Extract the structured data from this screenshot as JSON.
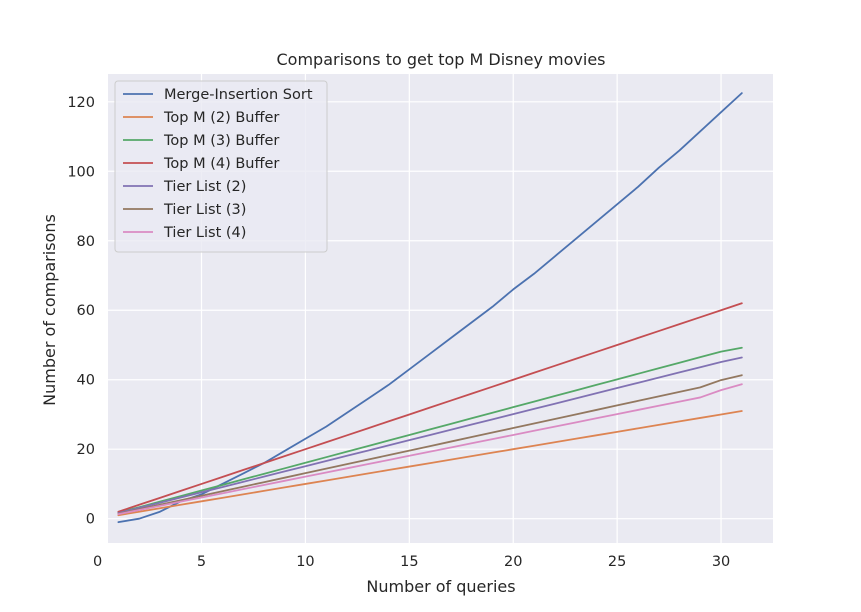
{
  "chart_data": {
    "type": "line",
    "title": "Comparisons to get top M Disney movies",
    "xlabel": "Number of queries",
    "ylabel": "Number of comparisons",
    "xlim": [
      0.5,
      32.5
    ],
    "ylim": [
      -7,
      128
    ],
    "xticks": [
      0,
      5,
      10,
      15,
      20,
      25,
      30
    ],
    "yticks": [
      0,
      20,
      40,
      60,
      80,
      100,
      120
    ],
    "grid": true,
    "legend_position": "top-left",
    "x": [
      1,
      2,
      3,
      4,
      5,
      6,
      7,
      8,
      9,
      10,
      11,
      12,
      13,
      14,
      15,
      16,
      17,
      18,
      19,
      20,
      21,
      22,
      23,
      24,
      25,
      26,
      27,
      28,
      29,
      30,
      31
    ],
    "series": [
      {
        "name": "Merge-Insertion Sort",
        "color": "#4c72b0",
        "values": [
          -1,
          0,
          2,
          5,
          7,
          10,
          13,
          16,
          19.5,
          23,
          26.5,
          30.5,
          34.5,
          38.5,
          43,
          47.5,
          52,
          56.5,
          61,
          66,
          70.5,
          75.5,
          80.5,
          85.5,
          90.5,
          95.5,
          101,
          106,
          111.5,
          117,
          122.5
        ]
      },
      {
        "name": "Top M (2) Buffer",
        "color": "#dd8452",
        "values": [
          1,
          2,
          3,
          4,
          5,
          6,
          7,
          8,
          9,
          10,
          11,
          12,
          13,
          14,
          15,
          16,
          17,
          18,
          19,
          20,
          21,
          22,
          23,
          24,
          25,
          26,
          27,
          28,
          29,
          30,
          31
        ]
      },
      {
        "name": "Top M (3) Buffer",
        "color": "#55a868",
        "values": [
          1.8,
          3.3,
          4.9,
          6.5,
          8.1,
          9.7,
          11.3,
          12.9,
          14.5,
          16.1,
          17.7,
          19.3,
          20.9,
          22.5,
          24.1,
          25.7,
          27.3,
          28.9,
          30.5,
          32.1,
          33.7,
          35.3,
          36.9,
          38.5,
          40.1,
          41.7,
          43.3,
          44.9,
          46.5,
          48.1,
          49.2
        ]
      },
      {
        "name": "Top M (4) Buffer",
        "color": "#c44e52",
        "values": [
          2,
          4,
          6,
          8,
          10,
          12,
          14,
          16,
          18,
          20,
          22,
          24,
          26,
          28,
          30,
          32,
          34,
          36,
          38,
          40,
          42,
          44,
          46,
          48,
          50,
          52,
          54,
          56,
          58,
          60,
          62
        ]
      },
      {
        "name": "Tier List (2)",
        "color": "#8172b3",
        "values": [
          1.6,
          3.1,
          4.6,
          6.1,
          7.6,
          9.1,
          10.6,
          12.1,
          13.6,
          15.1,
          16.6,
          18.1,
          19.6,
          21.1,
          22.6,
          24.1,
          25.6,
          27.1,
          28.6,
          30.1,
          31.6,
          33.1,
          34.6,
          36.1,
          37.6,
          39.1,
          40.6,
          42.1,
          43.6,
          45.1,
          46.4
        ]
      },
      {
        "name": "Tier List (3)",
        "color": "#937860",
        "values": [
          1.4,
          2.7,
          4.0,
          5.3,
          6.6,
          7.9,
          9.2,
          10.5,
          11.8,
          13.1,
          14.4,
          15.7,
          17.0,
          18.3,
          19.6,
          20.9,
          22.2,
          23.5,
          24.8,
          26.1,
          27.4,
          28.7,
          30.0,
          31.3,
          32.6,
          33.9,
          35.2,
          36.5,
          37.8,
          39.9,
          41.3
        ]
      },
      {
        "name": "Tier List (4)",
        "color": "#da8bc3",
        "values": [
          1.3,
          2.5,
          3.7,
          4.9,
          6.1,
          7.3,
          8.5,
          9.7,
          10.9,
          12.1,
          13.3,
          14.5,
          15.7,
          16.9,
          18.1,
          19.3,
          20.5,
          21.7,
          22.9,
          24.1,
          25.3,
          26.5,
          27.7,
          28.9,
          30.1,
          31.3,
          32.5,
          33.7,
          34.9,
          37.0,
          38.7
        ]
      }
    ]
  }
}
